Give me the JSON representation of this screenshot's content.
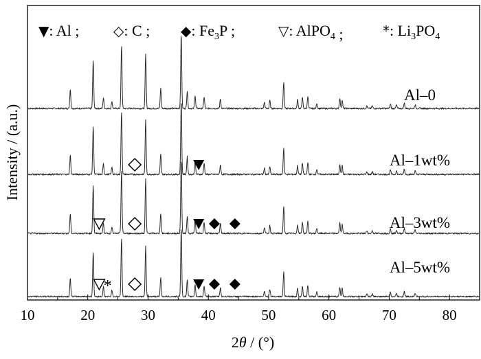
{
  "chart_data": {
    "type": "line",
    "xlabel_prefix": "2",
    "xlabel_theta": "θ",
    "xlabel_suffix": " / (°)",
    "ylabel": "Intensity / (a.u.)",
    "xlim": [
      10,
      85
    ],
    "x_ticks": [
      "10",
      "20",
      "30",
      "40",
      "50",
      "60",
      "70",
      "80"
    ],
    "legend": [
      {
        "symbol": "▼",
        "label": "Al",
        "sep": ";"
      },
      {
        "symbol": "◇",
        "label": "C",
        "sep": ";"
      },
      {
        "symbol": "◆",
        "label": "Fe",
        "sub": "3",
        "tail": "P",
        "sep": ";"
      },
      {
        "symbol": "▽",
        "label": "AlPO",
        "sub": "4",
        "tail": "",
        "sep": ";"
      },
      {
        "symbol": "*",
        "label": "Li",
        "sub": "3",
        "tail": "PO",
        "sub2": "4",
        "sep": ""
      }
    ],
    "peaks": [
      [
        17.1,
        0.22
      ],
      [
        20.9,
        0.55
      ],
      [
        22.6,
        0.12
      ],
      [
        24.0,
        0.08
      ],
      [
        25.6,
        0.72
      ],
      [
        29.6,
        0.62
      ],
      [
        32.1,
        0.23
      ],
      [
        35.5,
        0.85
      ],
      [
        36.5,
        0.2
      ],
      [
        37.8,
        0.15
      ],
      [
        39.3,
        0.13
      ],
      [
        42.0,
        0.11
      ],
      [
        49.3,
        0.07
      ],
      [
        50.2,
        0.09
      ],
      [
        52.5,
        0.3
      ],
      [
        54.8,
        0.1
      ],
      [
        55.6,
        0.13
      ],
      [
        56.5,
        0.14
      ],
      [
        58.0,
        0.06
      ],
      [
        61.8,
        0.12
      ],
      [
        62.2,
        0.1
      ],
      [
        66.3,
        0.03
      ],
      [
        67.2,
        0.03
      ],
      [
        70.2,
        0.05
      ],
      [
        71.2,
        0.04
      ],
      [
        72.5,
        0.06
      ],
      [
        74.3,
        0.04
      ]
    ],
    "series": [
      {
        "name": "Al–0",
        "markers": []
      },
      {
        "name": "Al–1wt%",
        "markers": [
          {
            "symbol": "diamond-open",
            "x": 27.8
          },
          {
            "symbol": "triangle-down-filled",
            "x": 38.4
          }
        ]
      },
      {
        "name": "Al–3wt%",
        "markers": [
          {
            "symbol": "triangle-down-open",
            "x": 21.9
          },
          {
            "symbol": "diamond-open",
            "x": 27.8
          },
          {
            "symbol": "triangle-down-filled",
            "x": 38.4
          },
          {
            "symbol": "diamond-filled",
            "x": 41.0
          },
          {
            "symbol": "diamond-filled",
            "x": 44.4
          }
        ]
      },
      {
        "name": "Al–5wt%",
        "markers": [
          {
            "symbol": "triangle-down-open",
            "x": 21.9
          },
          {
            "symbol": "star",
            "x": 23.3
          },
          {
            "symbol": "diamond-open",
            "x": 27.8
          },
          {
            "symbol": "triangle-down-filled",
            "x": 38.4
          },
          {
            "symbol": "diamond-filled",
            "x": 41.0
          },
          {
            "symbol": "diamond-filled",
            "x": 44.4
          }
        ]
      }
    ],
    "grid": false,
    "legend_position": "top"
  }
}
